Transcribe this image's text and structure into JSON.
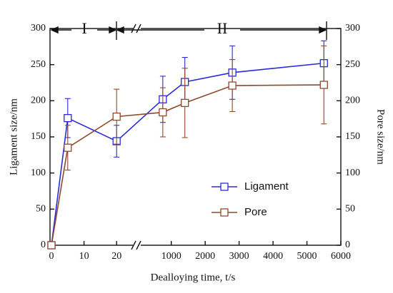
{
  "chart_data": {
    "type": "line",
    "x_label": "Dealloying time, t/s",
    "y_label": "Ligament size/nm",
    "y2_label": "Pore size/nm",
    "annotations": [
      "I",
      "II"
    ],
    "x_segments": [
      {
        "xlim": [
          0,
          25
        ],
        "xticks": [
          0,
          10,
          20
        ]
      },
      {
        "xlim": [
          100,
          6000
        ],
        "xticks": [
          1000,
          2000,
          3000,
          4000,
          5000,
          6000
        ]
      }
    ],
    "x": [
      0,
      5,
      20,
      750,
      1400,
      2800,
      5500
    ],
    "ylim": [
      0,
      300
    ],
    "yticks": [
      0,
      50,
      100,
      150,
      200,
      250,
      300
    ],
    "y2lim": [
      0,
      300
    ],
    "y2ticks": [
      0,
      50,
      100,
      150,
      200,
      250,
      300
    ],
    "legend": "lower right",
    "series": [
      {
        "name": "Ligament",
        "color": "#2b2bd6",
        "values": [
          0,
          176,
          144,
          202,
          226,
          239,
          252
        ],
        "errors": [
          0,
          27,
          22,
          32,
          34,
          37,
          31
        ]
      },
      {
        "name": "Pore",
        "color": "#8e4a2c",
        "axis": "y2",
        "values": [
          0,
          135,
          178,
          184,
          197,
          221,
          222
        ],
        "errors": [
          0,
          31,
          38,
          34,
          48,
          36,
          54
        ]
      }
    ]
  }
}
